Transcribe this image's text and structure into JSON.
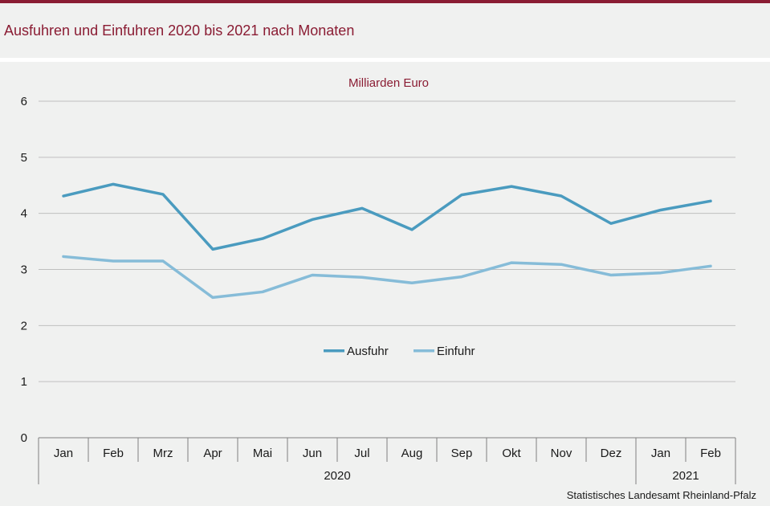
{
  "title": "Ausfuhren und Einfuhren 2020 bis 2021 nach Monaten",
  "source": "Statistisches Landesamt Rheinland-Pfalz",
  "colors": {
    "brand": "#8a1c33",
    "ausfuhr": "#4a9bbf",
    "einfuhr": "#86bcd8",
    "grid": "#bfbfbf"
  },
  "chart_data": {
    "type": "line",
    "ylabel": "Milliarden Euro",
    "ylim": [
      0,
      6
    ],
    "yticks": [
      0,
      1,
      2,
      3,
      4,
      5,
      6
    ],
    "grid": true,
    "legend_position": "center",
    "categories": [
      "Jan",
      "Feb",
      "Mrz",
      "Apr",
      "Mai",
      "Jun",
      "Jul",
      "Aug",
      "Sep",
      "Okt",
      "Nov",
      "Dez",
      "Jan",
      "Feb"
    ],
    "year_groups": [
      {
        "label": "2020",
        "count": 12
      },
      {
        "label": "2021",
        "count": 2
      }
    ],
    "series": [
      {
        "name": "Ausfuhr",
        "values": [
          4.31,
          4.52,
          4.34,
          3.36,
          3.55,
          3.89,
          4.09,
          3.71,
          4.33,
          4.48,
          4.31,
          3.82,
          4.06,
          4.22
        ]
      },
      {
        "name": "Einfuhr",
        "values": [
          3.23,
          3.15,
          3.15,
          2.5,
          2.6,
          2.9,
          2.86,
          2.76,
          2.87,
          3.12,
          3.09,
          2.9,
          2.94,
          3.06
        ]
      }
    ]
  }
}
